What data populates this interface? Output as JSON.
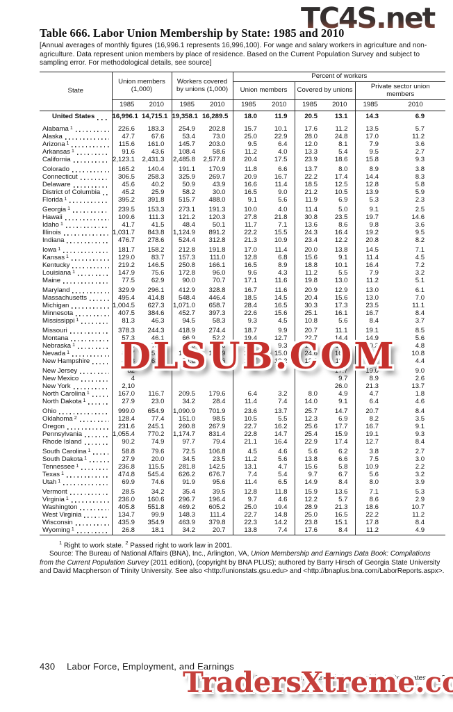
{
  "watermarks": {
    "top": "TC4S.net",
    "middle": "DLSUB.COM",
    "bottom": "TradersXtreme.com"
  },
  "title": "Table 666. Labor Union Membership by State: 1985 and 2010",
  "note": "[Annual averages of monthly figures (16,996.1 represents 16,996,100). For wage and salary workers in agriculture and non-agriculture. Data represent union members by place of residence. Based on the Current Population Survey and subject to sampling error. For methodological details, see source]",
  "table": {
    "col_headers": {
      "state": "State",
      "group1": "Union members (1,000)",
      "group2": "Workers covered by unions (1,000)",
      "percent": "Percent of workers",
      "sub1": "Union members",
      "sub2": "Covered by unions",
      "sub3": "Private sector union members",
      "years": [
        "1985",
        "2010",
        "1985",
        "2010",
        "1985",
        "2010",
        "1985",
        "2010",
        "1985",
        "2010"
      ]
    },
    "us_row": {
      "label": "United States",
      "values": [
        "16,996.1",
        "14,715.1",
        "19,358.1",
        "16,289.5",
        "18.0",
        "11.9",
        "20.5",
        "13.1",
        "14.3",
        "6.9"
      ]
    },
    "groups": [
      {
        "rows": [
          {
            "label": "Alabama",
            "fn": "1",
            "values": [
              "226.6",
              "183.3",
              "254.9",
              "202.8",
              "15.7",
              "10.1",
              "17.6",
              "11.2",
              "13.5",
              "5.7"
            ]
          },
          {
            "label": "Alaska",
            "fn": "",
            "values": [
              "47.7",
              "67.6",
              "53.4",
              "73.0",
              "25.0",
              "22.9",
              "28.0",
              "24.8",
              "17.0",
              "11.2"
            ]
          },
          {
            "label": "Arizona",
            "fn": "1",
            "values": [
              "115.6",
              "161.0",
              "145.7",
              "203.0",
              "9.5",
              "6.4",
              "12.0",
              "8.1",
              "7.9",
              "3.6"
            ]
          },
          {
            "label": "Arkansas",
            "fn": "1",
            "values": [
              "91.6",
              "43.6",
              "108.4",
              "58.6",
              "11.2",
              "4.0",
              "13.3",
              "5.4",
              "9.5",
              "2.7"
            ]
          },
          {
            "label": "California",
            "fn": "",
            "values": [
              "2,123.1",
              "2,431.3",
              "2,485.8",
              "2,577.8",
              "20.4",
              "17.5",
              "23.9",
              "18.6",
              "15.8",
              "9.3"
            ]
          }
        ]
      },
      {
        "rows": [
          {
            "label": "Colorado",
            "fn": "",
            "values": [
              "165.2",
              "140.4",
              "191.1",
              "170.9",
              "11.8",
              "6.6",
              "13.7",
              "8.0",
              "8.9",
              "3.8"
            ]
          },
          {
            "label": "Connecticut",
            "fn": "",
            "values": [
              "306.5",
              "258.3",
              "325.9",
              "269.7",
              "20.9",
              "16.7",
              "22.2",
              "17.4",
              "14.4",
              "8.3"
            ]
          },
          {
            "label": "Delaware",
            "fn": "",
            "values": [
              "45.6",
              "40.2",
              "50.9",
              "43.9",
              "16.6",
              "11.4",
              "18.5",
              "12.5",
              "12.8",
              "5.8"
            ]
          },
          {
            "label": "District of Columbia",
            "fn": "",
            "values": [
              "45.2",
              "25.9",
              "58.2",
              "30.0",
              "16.5",
              "9.0",
              "21.2",
              "10.5",
              "13.9",
              "5.9"
            ]
          },
          {
            "label": "Florida",
            "fn": "1",
            "values": [
              "395.2",
              "391.8",
              "515.7",
              "488.0",
              "9.1",
              "5.6",
              "11.9",
              "6.9",
              "5.3",
              "2.3"
            ]
          }
        ]
      },
      {
        "rows": [
          {
            "label": "Georgia",
            "fn": "1",
            "values": [
              "239.5",
              "153.3",
              "273.1",
              "191.3",
              "10.0",
              "4.0",
              "11.4",
              "5.0",
              "9.1",
              "2.5"
            ]
          },
          {
            "label": "Hawaii",
            "fn": "",
            "values": [
              "109.6",
              "111.3",
              "121.2",
              "120.3",
              "27.8",
              "21.8",
              "30.8",
              "23.5",
              "19.7",
              "14.6"
            ]
          },
          {
            "label": "Idaho",
            "fn": "1",
            "values": [
              "41.7",
              "41.5",
              "48.4",
              "50.1",
              "11.7",
              "7.1",
              "13.6",
              "8.6",
              "9.8",
              "3.6"
            ]
          },
          {
            "label": "Illinois",
            "fn": "",
            "values": [
              "1,031.7",
              "843.8",
              "1,124.9",
              "891.2",
              "22.2",
              "15.5",
              "24.3",
              "16.4",
              "19.2",
              "9.5"
            ]
          },
          {
            "label": "Indiana",
            "fn": "",
            "values": [
              "476.7",
              "278.6",
              "524.4",
              "312.8",
              "21.3",
              "10.9",
              "23.4",
              "12.2",
              "20.8",
              "8.2"
            ]
          }
        ]
      },
      {
        "rows": [
          {
            "label": "Iowa",
            "fn": "1",
            "values": [
              "181.7",
              "158.2",
              "212.8",
              "191.8",
              "17.0",
              "11.4",
              "20.0",
              "13.8",
              "14.5",
              "7.1"
            ]
          },
          {
            "label": "Kansas",
            "fn": "1",
            "values": [
              "129.0",
              "83.7",
              "157.3",
              "111.0",
              "12.8",
              "6.8",
              "15.6",
              "9.1",
              "11.4",
              "4.5"
            ]
          },
          {
            "label": "Kentucky",
            "fn": "",
            "values": [
              "219.2",
              "146.5",
              "250.8",
              "166.1",
              "16.5",
              "8.9",
              "18.8",
              "10.1",
              "16.4",
              "7.2"
            ]
          },
          {
            "label": "Louisiana",
            "fn": "1",
            "values": [
              "147.9",
              "75.6",
              "172.8",
              "96.0",
              "9.6",
              "4.3",
              "11.2",
              "5.5",
              "7.9",
              "3.2"
            ]
          },
          {
            "label": "Maine",
            "fn": "",
            "values": [
              "77.5",
              "62.9",
              "90.0",
              "70.7",
              "17.1",
              "11.6",
              "19.8",
              "13.0",
              "11.2",
              "5.1"
            ]
          }
        ]
      },
      {
        "rows": [
          {
            "label": "Maryland",
            "fn": "",
            "values": [
              "329.9",
              "296.1",
              "412.9",
              "328.8",
              "16.7",
              "11.6",
              "20.9",
              "12.9",
              "13.0",
              "6.1"
            ]
          },
          {
            "label": "Massachusetts",
            "fn": "",
            "values": [
              "495.4",
              "414.8",
              "548.4",
              "446.4",
              "18.5",
              "14.5",
              "20.4",
              "15.6",
              "13.0",
              "7.0"
            ]
          },
          {
            "label": "Michigan",
            "fn": "",
            "values": [
              "1,004.5",
              "627.3",
              "1,071.0",
              "658.7",
              "28.4",
              "16.5",
              "30.3",
              "17.3",
              "23.5",
              "11.1"
            ]
          },
          {
            "label": "Minnesota",
            "fn": "",
            "values": [
              "407.5",
              "384.6",
              "452.7",
              "397.3",
              "22.6",
              "15.6",
              "25.1",
              "16.1",
              "16.7",
              "8.4"
            ]
          },
          {
            "label": "Mississippi",
            "fn": "1",
            "values": [
              "81.3",
              "46.3",
              "94.5",
              "58.3",
              "9.3",
              "4.5",
              "10.8",
              "5.6",
              "8.4",
              "3.7"
            ]
          }
        ]
      },
      {
        "rows": [
          {
            "label": "Missouri",
            "fn": "",
            "values": [
              "378.3",
              "244.3",
              "418.9",
              "274.4",
              "18.7",
              "9.9",
              "20.7",
              "11.1",
              "19.1",
              "8.5"
            ]
          },
          {
            "label": "Montana",
            "fn": "",
            "values": [
              "57.3",
              "46.1",
              "66.9",
              "52.2",
              "19.4",
              "12.7",
              "22.7",
              "14.4",
              "14.9",
              "5.6"
            ]
          },
          {
            "label": "Nebraska",
            "fn": "1",
            "values": [
              "78.8",
              "75.3",
              "99.0",
              "95.6",
              "12.7",
              "9.3",
              "16.0",
              "11.8",
              "10.3",
              "4.8"
            ]
          },
          {
            "label": "Nevada",
            "fn": "1",
            "values": [
              "89.7",
              "151.3",
              "102.1",
              "169.9",
              "21.6",
              "15.0",
              "24.6",
              "16.8",
              "19.5",
              "10.8"
            ]
          },
          {
            "label": "New Hampshire",
            "fn": "",
            "values": [
              "48.8",
              "63.2",
              "54.8",
              "72.6",
              "10.7",
              "10.2",
              "12.0",
              "11.7",
              "6.9",
              "4.4"
            ]
          }
        ]
      },
      {
        "rows": [
          {
            "label": "New Jersey",
            "fn": "",
            "values": [
              "82",
              "",
              "",
              "",
              "",
              "",
              "",
              "17.7",
              "19.0",
              "9.0"
            ]
          },
          {
            "label": "New Mexico",
            "fn": "",
            "values": [
              "4",
              "",
              "",
              "",
              "",
              "",
              "",
              "9.7",
              "8.9",
              "2.6"
            ]
          },
          {
            "label": "New York",
            "fn": "",
            "values": [
              "2,10",
              "",
              "",
              "",
              "",
              "",
              "",
              "26.0",
              "21.3",
              "13.7"
            ]
          },
          {
            "label": "North Carolina",
            "fn": "1",
            "values": [
              "167.0",
              "116.7",
              "209.5",
              "179.6",
              "6.4",
              "3.2",
              "8.0",
              "4.9",
              "4.7",
              "1.8"
            ]
          },
          {
            "label": "North Dakota",
            "fn": "1",
            "values": [
              "27.9",
              "23.0",
              "34.2",
              "28.4",
              "11.4",
              "7.4",
              "14.0",
              "9.1",
              "6.4",
              "4.6"
            ]
          }
        ]
      },
      {
        "rows": [
          {
            "label": "Ohio",
            "fn": "",
            "values": [
              "999.0",
              "654.9",
              "1,090.9",
              "701.9",
              "23.6",
              "13.7",
              "25.7",
              "14.7",
              "20.7",
              "8.4"
            ]
          },
          {
            "label": "Oklahoma",
            "fn": "2",
            "values": [
              "128.4",
              "77.4",
              "151.0",
              "98.5",
              "10.5",
              "5.5",
              "12.3",
              "6.9",
              "8.2",
              "3.5"
            ]
          },
          {
            "label": "Oregon",
            "fn": "",
            "values": [
              "231.6",
              "245.1",
              "260.8",
              "267.9",
              "22.7",
              "16.2",
              "25.6",
              "17.7",
              "16.7",
              "9.1"
            ]
          },
          {
            "label": "Pennsylvania",
            "fn": "",
            "values": [
              "1,055.4",
              "770.2",
              "1,174.7",
              "831.4",
              "22.8",
              "14.7",
              "25.4",
              "15.9",
              "19.1",
              "9.3"
            ]
          },
          {
            "label": "Rhode Island",
            "fn": "",
            "values": [
              "90.2",
              "74.9",
              "97.7",
              "79.4",
              "21.1",
              "16.4",
              "22.9",
              "17.4",
              "12.7",
              "8.4"
            ]
          }
        ]
      },
      {
        "rows": [
          {
            "label": "South Carolina",
            "fn": "1",
            "values": [
              "58.8",
              "79.6",
              "72.5",
              "106.8",
              "4.5",
              "4.6",
              "5.6",
              "6.2",
              "3.8",
              "2.7"
            ]
          },
          {
            "label": "South Dakota",
            "fn": "1",
            "values": [
              "27.9",
              "20.0",
              "34.5",
              "23.5",
              "11.2",
              "5.6",
              "13.8",
              "6.6",
              "7.5",
              "3.0"
            ]
          },
          {
            "label": "Tennessee",
            "fn": "1",
            "values": [
              "236.8",
              "115.5",
              "281.8",
              "142.5",
              "13.1",
              "4.7",
              "15.6",
              "5.8",
              "10.9",
              "2.2"
            ]
          },
          {
            "label": "Texas",
            "fn": "1",
            "values": [
              "474.8",
              "545.4",
              "626.2",
              "676.7",
              "7.4",
              "5.4",
              "9.7",
              "6.7",
              "5.6",
              "3.2"
            ]
          },
          {
            "label": "Utah",
            "fn": "1",
            "values": [
              "69.9",
              "74.6",
              "91.9",
              "95.6",
              "11.4",
              "6.5",
              "14.9",
              "8.4",
              "8.0",
              "3.9"
            ]
          }
        ]
      },
      {
        "rows": [
          {
            "label": "Vermont",
            "fn": "",
            "values": [
              "28.5",
              "34.2",
              "35.4",
              "39.5",
              "12.8",
              "11.8",
              "15.9",
              "13.6",
              "7.1",
              "5.3"
            ]
          },
          {
            "label": "Virginia",
            "fn": "1",
            "values": [
              "236.0",
              "160.6",
              "296.7",
              "196.4",
              "9.7",
              "4.6",
              "12.2",
              "5.7",
              "8.6",
              "2.9"
            ]
          },
          {
            "label": "Washington",
            "fn": "",
            "values": [
              "405.8",
              "551.8",
              "469.2",
              "605.2",
              "25.0",
              "19.4",
              "28.9",
              "21.3",
              "18.6",
              "10.7"
            ]
          },
          {
            "label": "West Virginia",
            "fn": "",
            "values": [
              "134.7",
              "99.9",
              "148.3",
              "111.4",
              "22.7",
              "14.8",
              "25.0",
              "16.5",
              "22.2",
              "11.2"
            ]
          },
          {
            "label": "Wisconsin",
            "fn": "",
            "values": [
              "435.9",
              "354.9",
              "463.9",
              "379.8",
              "22.3",
              "14.2",
              "23.8",
              "15.1",
              "17.8",
              "8.4"
            ]
          },
          {
            "label": "Wyoming",
            "fn": "1",
            "values": [
              "26.8",
              "18.1",
              "34.2",
              "20.7",
              "13.8",
              "7.4",
              "17.6",
              "8.4",
              "11.2",
              "4.9"
            ]
          }
        ]
      }
    ]
  },
  "footnotes": {
    "fn1_marker": "1",
    "fn1_text": "Right to work state.",
    "fn2_marker": "2",
    "fn2_text": "Passed right to work law in 2001."
  },
  "source": {
    "part1": "Source: The Bureau of National Affairs (BNA), Inc., Arlington, VA, ",
    "italic": "Union Membership and Earnings Data Book: Compilations from the Current Population Survey",
    "part2": " (2011 edition), (copyright by BNA PLUS); authored by Barry Hirsch of Georgia State University and David Macpherson of Trinity University. See also <http://unionstats.gsu.edu> and <http://bnaplus.bna.com/LaborReports.aspx>."
  },
  "footer": {
    "page": "430",
    "section": "Labor Force, Employment, and Earnings",
    "credit": "U.S. Census Bureau, Statistical Abstract of the United States: 2012"
  }
}
